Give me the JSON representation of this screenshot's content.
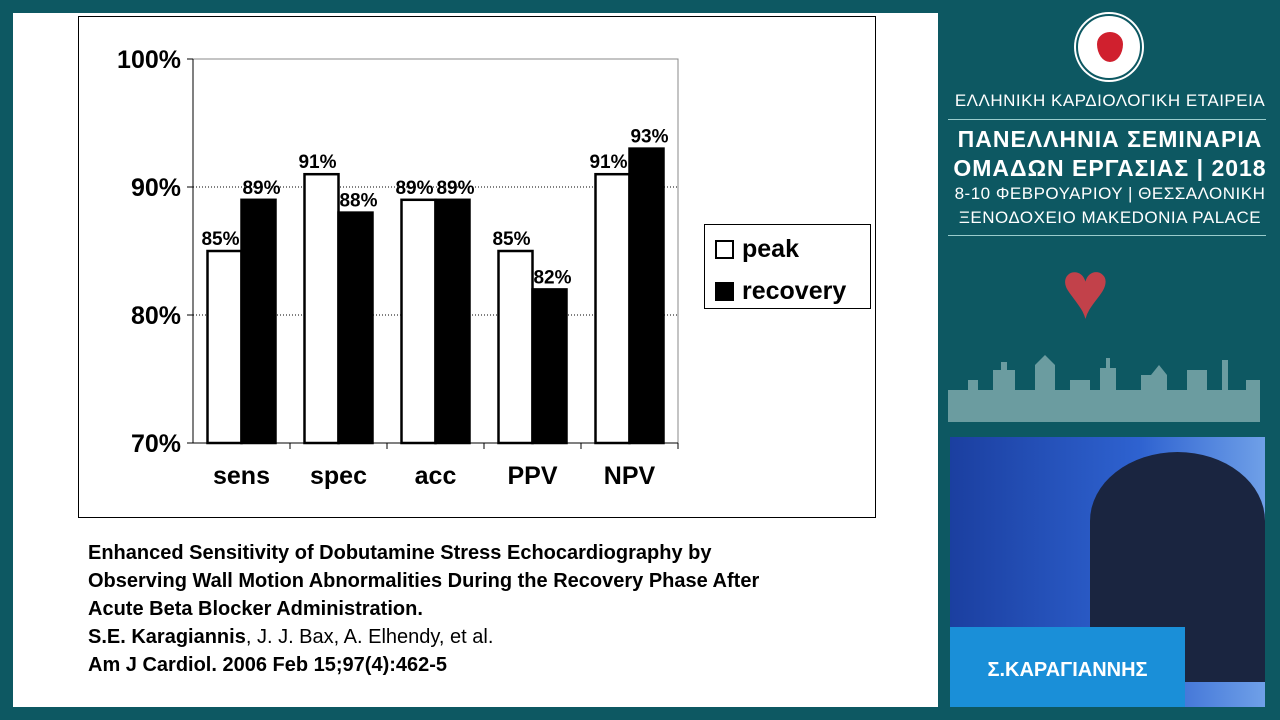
{
  "chart_data": {
    "type": "bar",
    "categories": [
      "sens",
      "spec",
      "acc",
      "PPV",
      "NPV"
    ],
    "series": [
      {
        "name": "peak",
        "values": [
          85,
          91,
          89,
          85,
          91
        ],
        "labels": [
          "85%",
          "91%",
          "89%",
          "85%",
          "91%"
        ],
        "color": "#ffffff"
      },
      {
        "name": "recovery",
        "values": [
          89,
          88,
          89,
          82,
          93
        ],
        "labels": [
          "89%",
          "88%",
          "89%",
          "82%",
          "93%"
        ],
        "color": "#000000"
      }
    ],
    "ylim": [
      70,
      100
    ],
    "yticks": [
      70,
      80,
      90,
      100
    ],
    "ytick_labels": [
      "70%",
      "80%",
      "90%",
      "100%"
    ],
    "grid": "dotted horizontal",
    "legend": "right"
  },
  "citation": {
    "title": [
      "Enhanced Sensitivity of Dobutamine Stress Echocardiography by",
      "Observing Wall Motion Abnormalities During the Recovery Phase After",
      "Acute Beta Blocker Administration."
    ],
    "first_author": "S.E. Karagiannis",
    "other_authors": ", J. J. Bax, A. Elhendy, et al.",
    "journal": "Am J Cardiol. 2006 Feb 15;97(4):462-5"
  },
  "sidebar": {
    "society": "ΕΛΛΗΝΙΚΗ ΚΑΡΔΙΟΛΟΓΙΚΗ ΕΤΑΙΡΕΙΑ",
    "event_line1": "ΠΑΝΕΛΛΗΝΙΑ ΣΕΜΙΝΑΡΙΑ",
    "event_line2": "ΟΜΑΔΩΝ ΕΡΓΑΣΙΑΣ | 2018",
    "dates": "8-10 ΦΕΒΡΟΥΑΡΙΟΥ | ΘΕΣΣΑΛΟΝΙΚΗ",
    "venue": "ΞΕΝΟΔΟΧΕΙΟ MAKEDONIA PALACE",
    "seal_text": "ΕΛΛΗΝΙΚΗ ΚΑΡΔΙΟΛΟΓΙΚΗ ΕΤΑΙΡΕΙΑ 1948"
  },
  "video": {
    "speaker_name": "Σ.ΚΑΡΑΓΙΑΝΝΗΣ"
  },
  "colors": {
    "background": "#0d5862",
    "seal_red": "#d0202e"
  }
}
